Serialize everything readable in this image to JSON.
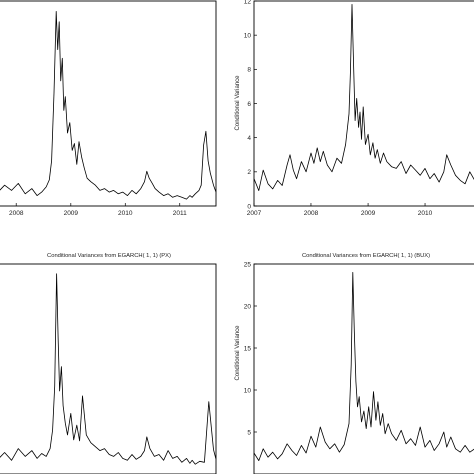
{
  "chart_data": [
    {
      "type": "line",
      "id": "top-left",
      "title": "",
      "xlabel": "",
      "ylabel": "",
      "x_ticks": [
        "2008",
        "2009",
        "2010",
        "2011"
      ],
      "x_range": [
        "2007-09-01",
        "2011-09-01"
      ],
      "y_range": [
        0,
        11.8
      ],
      "grid": false,
      "series": [
        {
          "x": [
            "2007-09-01",
            "2007-10-15",
            "2007-12-01",
            "2008-01-15",
            "2008-03-01",
            "2008-04-15",
            "2008-05-20",
            "2008-06-20",
            "2008-07-20",
            "2008-08-10",
            "2008-08-25",
            "2008-09-10",
            "2008-09-25",
            "2008-10-05",
            "2008-10-15",
            "2008-10-25",
            "2008-11-05",
            "2008-11-15",
            "2008-11-25",
            "2008-12-10",
            "2008-12-25",
            "2009-01-10",
            "2009-01-25",
            "2009-02-10",
            "2009-02-25",
            "2009-03-15",
            "2009-04-01",
            "2009-04-20",
            "2009-05-15",
            "2009-06-15",
            "2009-07-15",
            "2009-08-15",
            "2009-09-15",
            "2009-10-15",
            "2009-11-15",
            "2009-12-15",
            "2010-01-15",
            "2010-02-15",
            "2010-03-15",
            "2010-04-15",
            "2010-05-10",
            "2010-05-25",
            "2010-06-10",
            "2010-07-01",
            "2010-07-20",
            "2010-08-15",
            "2010-09-15",
            "2010-10-15",
            "2010-11-15",
            "2010-12-15",
            "2011-01-15",
            "2011-02-15",
            "2011-03-10",
            "2011-03-25",
            "2011-04-15",
            "2011-05-10",
            "2011-05-25",
            "2011-06-10",
            "2011-06-25",
            "2011-07-10",
            "2011-07-25",
            "2011-08-15",
            "2011-09-01"
          ],
          "y": [
            0.8,
            1.2,
            0.9,
            1.3,
            0.7,
            1.0,
            0.6,
            0.8,
            1.1,
            1.5,
            2.6,
            6.5,
            11.2,
            9.0,
            10.6,
            7.2,
            8.5,
            5.5,
            6.3,
            4.2,
            4.8,
            3.2,
            3.6,
            2.4,
            3.7,
            2.8,
            2.2,
            1.6,
            1.4,
            1.2,
            0.9,
            1.0,
            0.8,
            0.9,
            0.7,
            0.8,
            0.6,
            0.9,
            0.7,
            1.0,
            1.4,
            2.0,
            1.6,
            1.3,
            1.0,
            0.8,
            0.6,
            0.7,
            0.5,
            0.6,
            0.5,
            0.4,
            0.6,
            0.5,
            0.7,
            0.9,
            1.2,
            3.5,
            4.3,
            2.6,
            1.9,
            1.2,
            0.8
          ]
        }
      ]
    },
    {
      "type": "line",
      "id": "top-right",
      "title": "",
      "xlabel": "",
      "ylabel": "Conditional Variance",
      "x_ticks": [
        "2007",
        "2008",
        "2009",
        "2010"
      ],
      "y_ticks": [
        "0",
        "2",
        "4",
        "6",
        "8",
        "10",
        "12"
      ],
      "x_range": [
        "2007-01-01",
        "2011-01-01"
      ],
      "y_range": [
        0,
        12
      ],
      "grid": false,
      "series": [
        {
          "x": [
            "2007-01-01",
            "2007-02-01",
            "2007-03-01",
            "2007-04-01",
            "2007-05-01",
            "2007-06-01",
            "2007-07-01",
            "2007-08-01",
            "2007-08-20",
            "2007-09-10",
            "2007-10-01",
            "2007-11-01",
            "2007-12-01",
            "2008-01-01",
            "2008-01-20",
            "2008-02-10",
            "2008-03-01",
            "2008-03-20",
            "2008-04-15",
            "2008-05-15",
            "2008-06-15",
            "2008-07-15",
            "2008-08-10",
            "2008-09-01",
            "2008-09-10",
            "2008-09-20",
            "2008-10-01",
            "2008-10-10",
            "2008-10-20",
            "2008-11-01",
            "2008-11-10",
            "2008-11-20",
            "2008-12-01",
            "2008-12-15",
            "2009-01-01",
            "2009-01-15",
            "2009-02-01",
            "2009-02-15",
            "2009-03-01",
            "2009-03-20",
            "2009-04-10",
            "2009-05-01",
            "2009-06-01",
            "2009-07-01",
            "2009-08-01",
            "2009-09-01",
            "2009-10-01",
            "2009-11-01",
            "2009-12-01",
            "2010-01-01",
            "2010-02-01",
            "2010-03-01",
            "2010-04-01",
            "2010-05-01",
            "2010-05-20",
            "2010-06-15",
            "2010-07-15",
            "2010-08-15",
            "2010-09-15",
            "2010-10-15",
            "2010-11-15",
            "2010-12-15",
            "2011-01-01"
          ],
          "y": [
            1.6,
            0.9,
            2.1,
            1.3,
            1.0,
            1.5,
            1.2,
            2.4,
            3.0,
            2.1,
            1.6,
            2.6,
            2.0,
            3.1,
            2.5,
            3.4,
            2.6,
            3.2,
            2.4,
            2.0,
            2.8,
            2.5,
            3.6,
            5.4,
            7.8,
            11.8,
            8.0,
            5.0,
            6.3,
            4.6,
            5.5,
            3.9,
            5.8,
            3.6,
            4.2,
            3.0,
            3.7,
            2.8,
            3.3,
            2.5,
            3.1,
            2.6,
            2.3,
            2.2,
            2.6,
            1.9,
            2.4,
            2.1,
            1.8,
            2.2,
            1.6,
            1.9,
            1.4,
            2.0,
            3.0,
            2.4,
            1.8,
            1.5,
            1.3,
            2.0,
            1.5,
            1.1,
            1.0
          ]
        }
      ]
    },
    {
      "type": "line",
      "id": "bottom-left",
      "title": "Conditional Variances from EGARCH( 1, 1) (PX)",
      "xlabel": "",
      "ylabel": "",
      "x_ticks": [],
      "x_range": [
        "2007-09-01",
        "2011-09-01"
      ],
      "y_range": [
        0,
        21.5
      ],
      "grid": false,
      "series": [
        {
          "x": [
            "2007-09-01",
            "2007-10-15",
            "2007-12-01",
            "2008-01-15",
            "2008-03-01",
            "2008-04-15",
            "2008-05-20",
            "2008-06-20",
            "2008-07-20",
            "2008-08-15",
            "2008-09-01",
            "2008-09-15",
            "2008-09-28",
            "2008-10-08",
            "2008-10-18",
            "2008-10-30",
            "2008-11-10",
            "2008-11-25",
            "2008-12-10",
            "2009-01-01",
            "2009-01-20",
            "2009-02-10",
            "2009-03-01",
            "2009-03-20",
            "2009-04-15",
            "2009-05-15",
            "2009-06-15",
            "2009-07-15",
            "2009-08-15",
            "2009-09-15",
            "2009-10-15",
            "2009-11-15",
            "2009-12-15",
            "2010-01-15",
            "2010-02-15",
            "2010-03-15",
            "2010-04-15",
            "2010-05-10",
            "2010-05-25",
            "2010-06-15",
            "2010-07-15",
            "2010-08-15",
            "2010-09-15",
            "2010-10-15",
            "2010-11-15",
            "2010-12-15",
            "2011-01-15",
            "2011-02-15",
            "2011-03-10",
            "2011-03-25",
            "2011-04-15",
            "2011-05-15",
            "2011-06-15",
            "2011-07-15",
            "2011-08-15",
            "2011-09-01"
          ],
          "y": [
            1.5,
            2.2,
            1.4,
            2.6,
            1.8,
            2.4,
            1.6,
            2.1,
            1.8,
            2.6,
            4.5,
            9.0,
            20.5,
            14.0,
            8.5,
            11.0,
            7.0,
            5.2,
            4.0,
            6.2,
            3.5,
            5.0,
            3.4,
            8.0,
            4.0,
            3.2,
            2.8,
            2.4,
            2.6,
            2.0,
            1.8,
            2.2,
            1.6,
            1.4,
            2.0,
            1.5,
            1.8,
            2.4,
            3.8,
            2.6,
            1.8,
            2.0,
            1.4,
            2.4,
            1.6,
            1.8,
            1.2,
            1.6,
            1.1,
            1.4,
            1.0,
            1.3,
            1.2,
            7.4,
            2.5,
            1.5
          ]
        }
      ]
    },
    {
      "type": "line",
      "id": "bottom-right",
      "title": "Conditional Variances from EGARCH( 1, 1) (BUX)",
      "xlabel": "",
      "ylabel": "Conditional Variance",
      "x_ticks": [],
      "y_ticks": [
        "5",
        "10",
        "15",
        "20",
        "25"
      ],
      "x_range": [
        "2007-01-01",
        "2011-01-01"
      ],
      "y_range": [
        0,
        25
      ],
      "grid": false,
      "series": [
        {
          "x": [
            "2007-01-01",
            "2007-02-01",
            "2007-03-01",
            "2007-04-01",
            "2007-05-01",
            "2007-06-01",
            "2007-07-01",
            "2007-08-01",
            "2007-09-01",
            "2007-10-01",
            "2007-11-01",
            "2007-12-01",
            "2008-01-01",
            "2008-02-01",
            "2008-03-01",
            "2008-04-01",
            "2008-05-01",
            "2008-06-01",
            "2008-07-01",
            "2008-08-01",
            "2008-09-01",
            "2008-09-15",
            "2008-09-25",
            "2008-10-05",
            "2008-10-15",
            "2008-10-25",
            "2008-11-05",
            "2008-11-20",
            "2008-12-05",
            "2008-12-20",
            "2009-01-05",
            "2009-01-20",
            "2009-02-05",
            "2009-02-20",
            "2009-03-05",
            "2009-03-20",
            "2009-04-05",
            "2009-04-20",
            "2009-05-10",
            "2009-06-01",
            "2009-07-01",
            "2009-08-01",
            "2009-09-01",
            "2009-10-01",
            "2009-11-01",
            "2009-12-01",
            "2010-01-01",
            "2010-02-01",
            "2010-03-01",
            "2010-04-01",
            "2010-05-01",
            "2010-05-20",
            "2010-06-15",
            "2010-07-15",
            "2010-08-15",
            "2010-09-15",
            "2010-10-15",
            "2010-11-15",
            "2010-12-15",
            "2011-01-01"
          ],
          "y": [
            2.5,
            1.6,
            3.0,
            2.0,
            2.6,
            1.8,
            2.4,
            3.6,
            2.8,
            2.2,
            3.4,
            2.5,
            4.5,
            3.2,
            5.6,
            3.8,
            3.0,
            3.6,
            2.6,
            3.5,
            6.0,
            13.0,
            24.0,
            17.0,
            11.0,
            8.0,
            9.2,
            6.2,
            7.5,
            5.4,
            8.0,
            5.6,
            9.8,
            6.4,
            8.6,
            5.8,
            7.2,
            4.8,
            6.0,
            4.8,
            4.0,
            5.2,
            3.6,
            4.2,
            3.4,
            5.6,
            3.2,
            4.0,
            2.8,
            3.6,
            5.0,
            3.2,
            4.4,
            3.0,
            2.6,
            3.4,
            2.6,
            3.0,
            2.2,
            2.4
          ]
        }
      ]
    }
  ]
}
